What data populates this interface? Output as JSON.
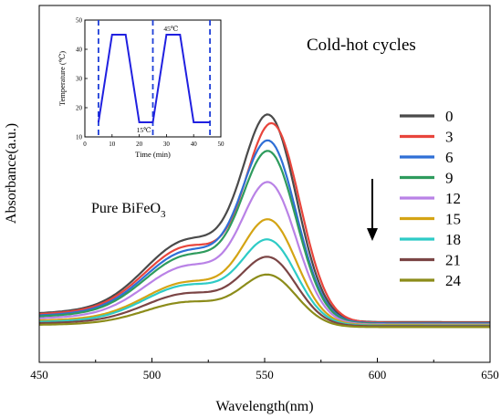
{
  "chart_data": [
    {
      "type": "line",
      "title": "",
      "xlabel": "Wavelength(nm)",
      "ylabel": "Absorbance(a.u.)",
      "xlim": [
        450,
        650
      ],
      "ylim": [
        0,
        1
      ],
      "xticks": [
        "450",
        "500",
        "550",
        "600",
        "650"
      ],
      "yticks_shown": false,
      "annotations": {
        "title_text": "Cold-hot cycles",
        "sample_prefix": "Pure BiFeO",
        "sample_subscript": "3",
        "trend_arrow": "down"
      },
      "legend_position": "right",
      "series": [
        {
          "name": "0",
          "color": "#4a4a4a",
          "peak": 0.84,
          "peak_x": 552.5,
          "shoulder": 0.42,
          "baseline": 0.022
        },
        {
          "name": "3",
          "color": "#e8453c",
          "peak": 0.81,
          "peak_x": 554.0,
          "shoulder": 0.39,
          "baseline": 0.02
        },
        {
          "name": "6",
          "color": "#2f6fd6",
          "peak": 0.74,
          "peak_x": 552.5,
          "shoulder": 0.37,
          "baseline": 0.018
        },
        {
          "name": "9",
          "color": "#2e9b5d",
          "peak": 0.7,
          "peak_x": 552.5,
          "shoulder": 0.35,
          "baseline": 0.016
        },
        {
          "name": "12",
          "color": "#b982e6",
          "peak": 0.58,
          "peak_x": 552.5,
          "shoulder": 0.3,
          "baseline": 0.014
        },
        {
          "name": "15",
          "color": "#d4a414",
          "peak": 0.43,
          "peak_x": 552.5,
          "shoulder": 0.22,
          "baseline": 0.012
        },
        {
          "name": "18",
          "color": "#2ecbc6",
          "peak": 0.36,
          "peak_x": 552.5,
          "shoulder": 0.21,
          "baseline": 0.01
        },
        {
          "name": "21",
          "color": "#7b4545",
          "peak": 0.29,
          "peak_x": 552.5,
          "shoulder": 0.17,
          "baseline": 0.008
        },
        {
          "name": "24",
          "color": "#8c8c1a",
          "peak": 0.22,
          "peak_x": 552.5,
          "shoulder": 0.13,
          "baseline": 0.005
        }
      ]
    },
    {
      "type": "line",
      "title": "",
      "xlabel": "Time (min)",
      "ylabel": "Temperature (℃)",
      "xlim": [
        0,
        50
      ],
      "ylim": [
        10,
        50
      ],
      "xticks": [
        "0",
        "10",
        "20",
        "30",
        "40",
        "50"
      ],
      "yticks": [
        "10",
        "20",
        "30",
        "40",
        "50"
      ],
      "series": [
        {
          "name": "",
          "color": "#2020e0",
          "x": [
            5,
            10,
            15,
            20,
            22,
            25,
            30,
            35,
            40,
            45,
            46
          ],
          "y": [
            15,
            45,
            45,
            15,
            15,
            15,
            45,
            45,
            15,
            15,
            15
          ]
        }
      ],
      "annotations": [
        {
          "text": "45℃",
          "x": 29,
          "y": 45
        },
        {
          "text": "15℃",
          "x": 19,
          "y": 15
        }
      ],
      "vlines": [
        5,
        25,
        46
      ],
      "vline_style": "dashed"
    }
  ]
}
